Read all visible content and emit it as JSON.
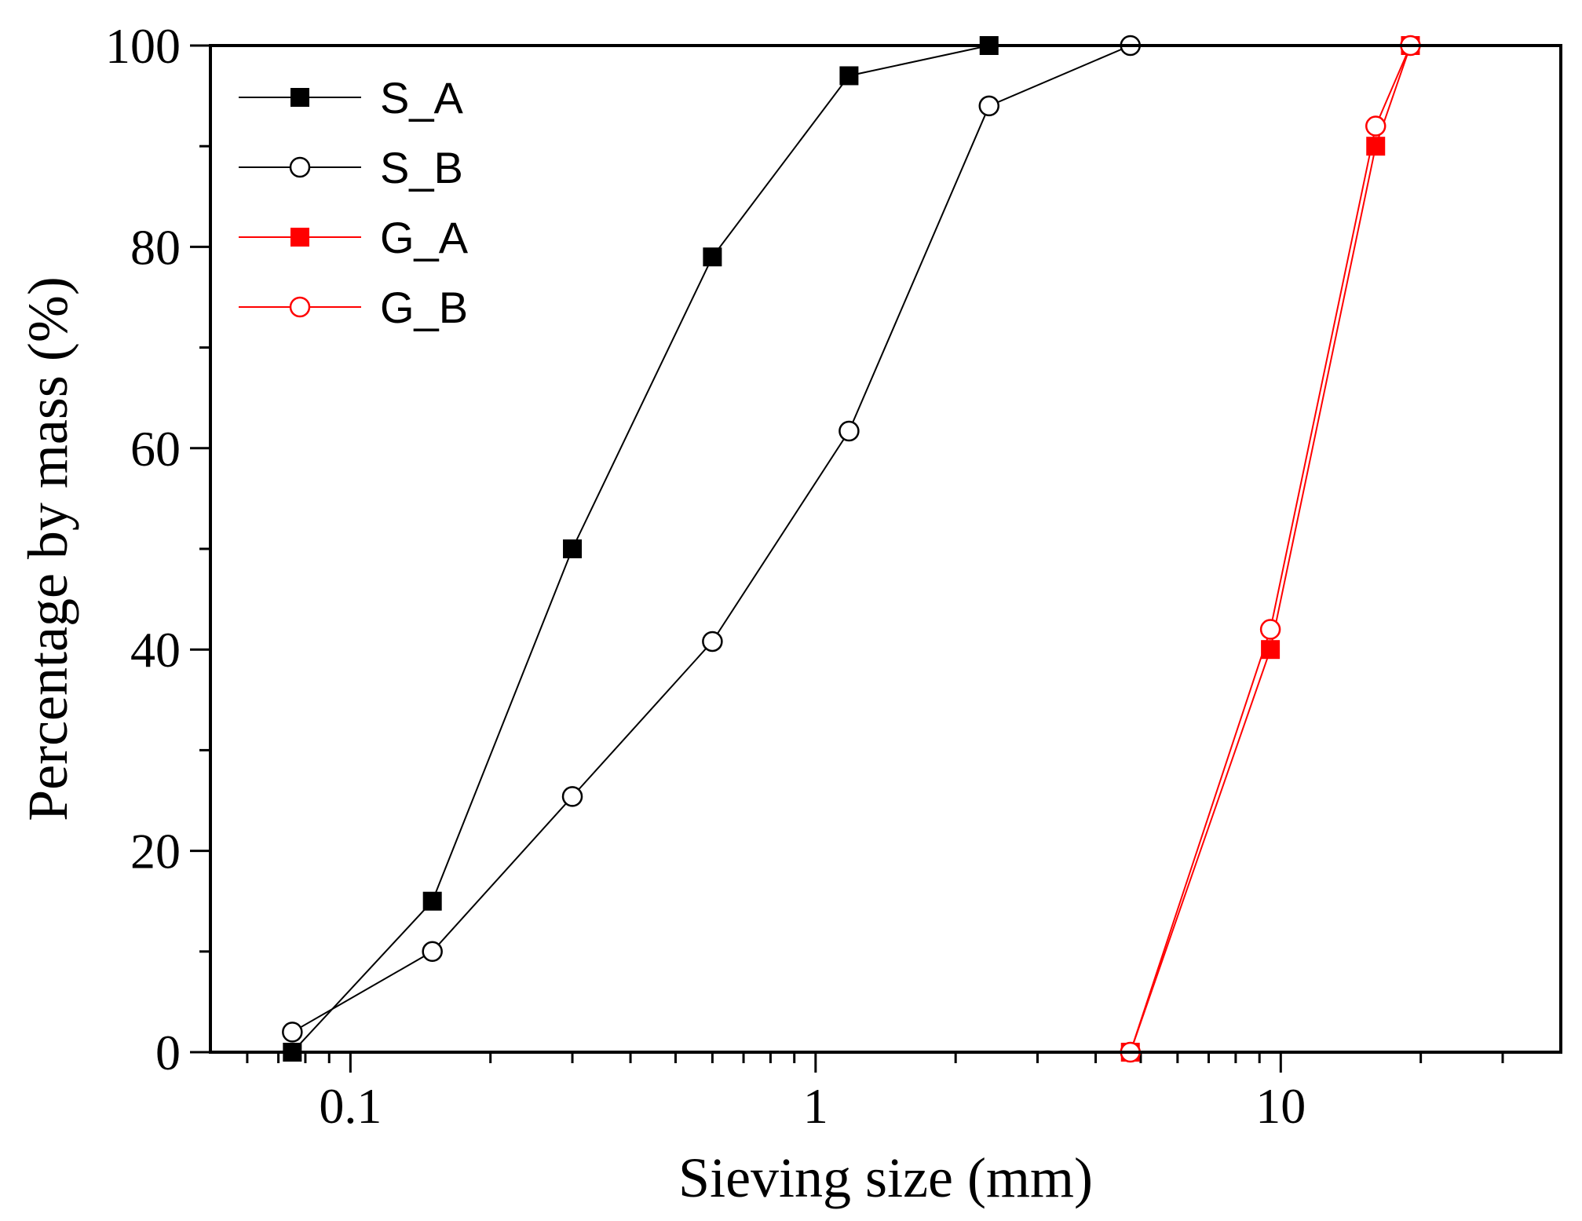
{
  "chart_data": {
    "type": "line",
    "title": "",
    "xlabel": "Sieving size (mm)",
    "ylabel": "Percentage by mass (%)",
    "xscale": "log",
    "xlim": [
      0.05,
      40
    ],
    "ylim": [
      0,
      100
    ],
    "x_major_ticks": [
      0.1,
      1,
      10
    ],
    "x_tick_labels": [
      "0.1",
      "1",
      "10"
    ],
    "y_major_ticks": [
      0,
      20,
      40,
      60,
      80,
      100
    ],
    "y_tick_labels": [
      "0",
      "20",
      "40",
      "60",
      "80",
      "100"
    ],
    "y_minor_ticks": [
      10,
      30,
      50,
      70,
      90
    ],
    "grid": false,
    "legend_position": "top-left",
    "series": [
      {
        "name": "S_A",
        "color": "#000000",
        "marker": "filled-square",
        "x": [
          0.075,
          0.15,
          0.3,
          0.6,
          1.18,
          2.36
        ],
        "y": [
          0,
          15,
          50,
          79,
          97,
          100
        ]
      },
      {
        "name": "S_B",
        "color": "#000000",
        "marker": "open-circle",
        "x": [
          0.075,
          0.15,
          0.3,
          0.6,
          1.18,
          2.36,
          4.75
        ],
        "y": [
          2,
          10,
          25.4,
          40.8,
          61.7,
          94,
          100
        ]
      },
      {
        "name": "G_A",
        "color": "#ff0000",
        "marker": "filled-square",
        "x": [
          4.75,
          9.5,
          16,
          19
        ],
        "y": [
          0,
          40,
          90,
          100
        ]
      },
      {
        "name": "G_B",
        "color": "#ff0000",
        "marker": "open-circle",
        "x": [
          4.75,
          9.5,
          16,
          19
        ],
        "y": [
          0,
          42,
          92,
          100
        ]
      }
    ]
  }
}
